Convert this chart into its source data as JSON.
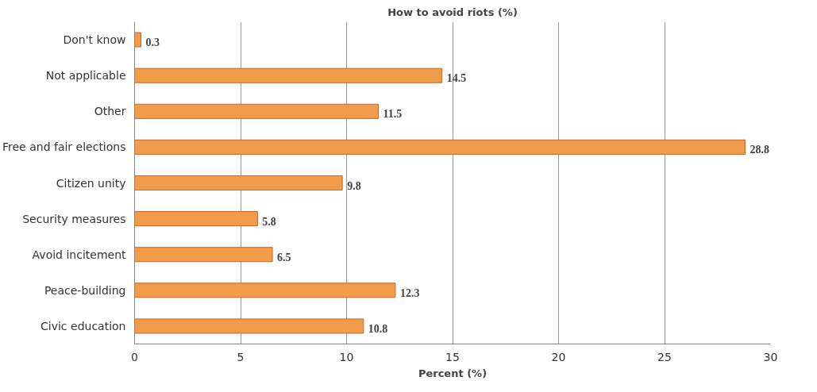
{
  "chart_data": {
    "type": "bar",
    "orientation": "horizontal",
    "title": "How to avoid riots (%)",
    "xlabel": "Percent (%)",
    "categories": [
      "Don't know",
      "Not applicable",
      "Other",
      "Free and fair elections",
      "Citizen unity",
      "Security measures",
      "Avoid incitement",
      "Peace-building",
      "Civic education"
    ],
    "values": [
      0.3,
      14.5,
      11.5,
      28.8,
      9.8,
      5.8,
      6.5,
      12.3,
      10.8
    ],
    "color": "#f29b4b",
    "xlim": [
      0,
      30
    ],
    "xticks": [
      0,
      5,
      10,
      15,
      20,
      25,
      30
    ],
    "grid": "x",
    "data_labels": true
  }
}
